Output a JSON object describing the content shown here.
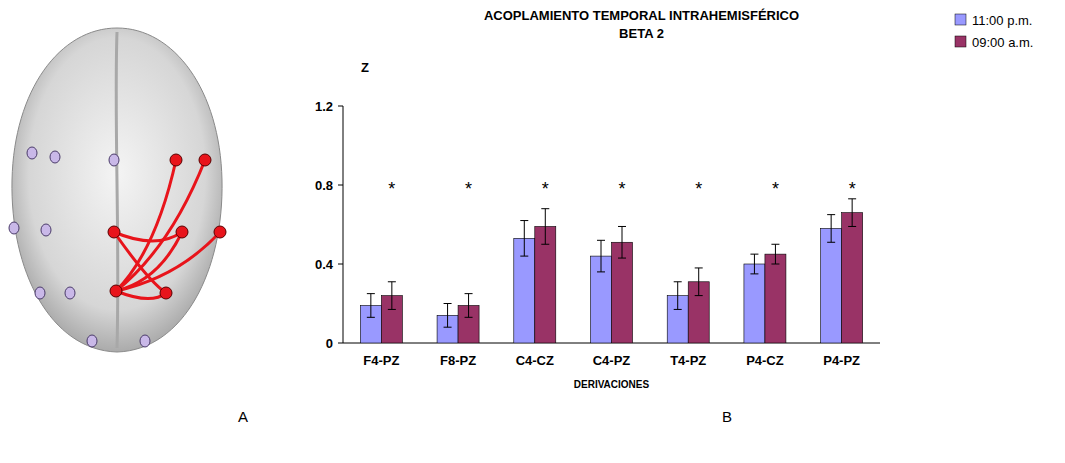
{
  "chart_data": {
    "type": "bar",
    "title": "ACOPLAMIENTO TEMPORAL INTRAHEMISFÉRICO",
    "subtitle": "BETA 2",
    "y_label": "Z",
    "x_label": "DERIVACIONES",
    "categories": [
      "F4-PZ",
      "F8-PZ",
      "C4-CZ",
      "C4-PZ",
      "T4-PZ",
      "P4-CZ",
      "P4-PZ"
    ],
    "series": [
      {
        "name": "11:00 p.m.",
        "color": "#9999ff",
        "values": [
          0.19,
          0.14,
          0.53,
          0.44,
          0.24,
          0.4,
          0.58
        ],
        "errors": [
          0.06,
          0.06,
          0.09,
          0.08,
          0.07,
          0.05,
          0.07
        ]
      },
      {
        "name": "09:00 a.m.",
        "color": "#993366",
        "values": [
          0.24,
          0.19,
          0.59,
          0.51,
          0.31,
          0.45,
          0.66
        ],
        "errors": [
          0.07,
          0.06,
          0.09,
          0.08,
          0.07,
          0.05,
          0.07
        ]
      }
    ],
    "annotations": [
      {
        "text": "*",
        "x": "F4-PZ",
        "y": 0.78
      },
      {
        "text": "*",
        "x": "F8-PZ",
        "y": 0.78
      },
      {
        "text": "*",
        "x": "C4-CZ",
        "y": 0.78
      },
      {
        "text": "*",
        "x": "C4-PZ",
        "y": 0.78
      },
      {
        "text": "*",
        "x": "T4-PZ",
        "y": 0.78
      },
      {
        "text": "*",
        "x": "P4-CZ",
        "y": 0.78
      },
      {
        "text": "*",
        "x": "P4-PZ",
        "y": 0.78
      }
    ],
    "ylim": [
      0,
      1.2
    ],
    "yticks": [
      0,
      0.4,
      0.8,
      1.2
    ],
    "grid": false,
    "legend": "top-right"
  },
  "panel_labels": [
    "A",
    "B"
  ]
}
